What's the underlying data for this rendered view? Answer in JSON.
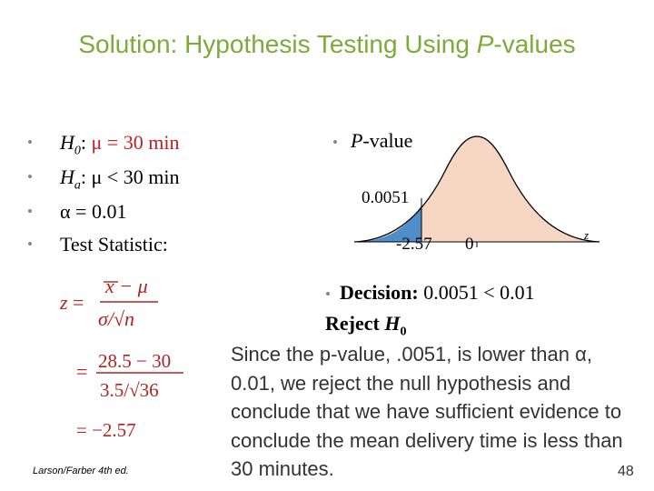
{
  "title": {
    "pre": "Solution: Hypothesis Testing Using ",
    "p": "P",
    "post": "-values"
  },
  "bullets": {
    "h0": {
      "label": "H",
      "sub": "0",
      "colon": ":",
      "value": "μ = 30 min"
    },
    "ha": {
      "label": "H",
      "sub": "a",
      "colon": ":",
      "value": "μ < 30 min"
    },
    "alpha": {
      "label": "α = ",
      "value": "0.01"
    },
    "stat": {
      "label": "Test Statistic:"
    }
  },
  "formula": {
    "z": "z",
    "eq": "=",
    "num1": "x − μ",
    "den1": "σ/√n",
    "num2": "28.5 − 30",
    "den2": "3.5/√36",
    "result": "= −2.57"
  },
  "pvalue": {
    "bullet_p": "P",
    "bullet_rest": "-value",
    "value": "0.0051",
    "tick_neg": "-2.57",
    "tick_zero": "0",
    "axis": "z"
  },
  "decision": {
    "label": "Decision:",
    "comparison": "0.0051 < 0.01",
    "reject": "Reject ",
    "h": "H",
    "sub": "0"
  },
  "paragraph": "Since the p-value, .0051, is lower than α, 0.01, we reject the null hypothesis and conclude that we have sufficient evidence to conclude the mean delivery time is less than 30 minutes.",
  "footer": "Larson/Farber 4th ed.",
  "page_number": "48",
  "colors": {
    "title": "#7daa3a",
    "accent_red": "#c02020",
    "curve_fill": "#f6d7c4",
    "tail_fill": "#4f8ec9"
  }
}
